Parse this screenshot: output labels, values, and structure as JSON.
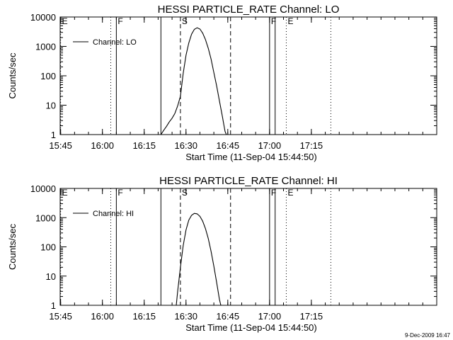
{
  "chart_data": [
    {
      "type": "line",
      "title": "HESSI PARTICLE_RATE Channel: LO",
      "xlabel": "Start Time (11-Sep-04 15:44:50)",
      "ylabel": "Counts/sec",
      "x_tick_labels": [
        "15:45",
        "16:00",
        "16:15",
        "16:30",
        "16:45",
        "17:00",
        "17:15"
      ],
      "y_tick_labels": [
        "1",
        "10",
        "100",
        "1000",
        "10000"
      ],
      "y_scale": "log",
      "ylim": [
        1,
        10000
      ],
      "xlim": [
        "15:44:50",
        "18:00"
      ],
      "legend": {
        "label": "Channel: LO",
        "placement": "top-left"
      },
      "grid": false,
      "markers": [
        {
          "label": "E",
          "time": "15:45",
          "style": "dotted"
        },
        {
          "label": "",
          "time": "16:03",
          "style": "dotted"
        },
        {
          "label": "F",
          "time": "16:05",
          "style": "solid"
        },
        {
          "label": "",
          "time": "16:21",
          "style": "solid"
        },
        {
          "label": "S",
          "time": "16:28",
          "style": "dashed"
        },
        {
          "label": "",
          "time": "16:46",
          "style": "dashed"
        },
        {
          "label": "F",
          "time": "17:00",
          "style": "solid"
        },
        {
          "label": "",
          "time": "17:02",
          "style": "solid"
        },
        {
          "label": "E",
          "time": "17:06",
          "style": "dotted"
        },
        {
          "label": "",
          "time": "17:22",
          "style": "dotted"
        }
      ],
      "series": [
        {
          "name": "Channel: LO",
          "points": [
            [
              "16:21",
              1
            ],
            [
              "16:22",
              1.4
            ],
            [
              "16:23",
              1.9
            ],
            [
              "16:24",
              2.7
            ],
            [
              "16:25",
              3.6
            ],
            [
              "16:26",
              5.2
            ],
            [
              "16:27",
              9.5
            ],
            [
              "16:28",
              20
            ],
            [
              "16:29",
              120
            ],
            [
              "16:30",
              500
            ],
            [
              "16:31",
              1300
            ],
            [
              "16:32",
              2600
            ],
            [
              "16:33",
              3800
            ],
            [
              "16:34",
              4300
            ],
            [
              "16:35",
              3900
            ],
            [
              "16:36",
              2800
            ],
            [
              "16:37",
              1700
            ],
            [
              "16:38",
              850
            ],
            [
              "16:39",
              370
            ],
            [
              "16:40",
              130
            ],
            [
              "16:41",
              45
            ],
            [
              "16:42",
              14
            ],
            [
              "16:43",
              4.5
            ],
            [
              "16:44",
              1.3
            ],
            [
              "16:44:30",
              1
            ]
          ]
        }
      ]
    },
    {
      "type": "line",
      "title": "HESSI PARTICLE_RATE Channel: HI",
      "xlabel": "Start Time (11-Sep-04 15:44:50)",
      "ylabel": "Counts/sec",
      "x_tick_labels": [
        "15:45",
        "16:00",
        "16:15",
        "16:30",
        "16:45",
        "17:00",
        "17:15"
      ],
      "y_tick_labels": [
        "1",
        "10",
        "100",
        "1000",
        "10000"
      ],
      "y_scale": "log",
      "ylim": [
        1,
        10000
      ],
      "xlim": [
        "15:44:50",
        "18:00"
      ],
      "legend": {
        "label": "Channel: HI",
        "placement": "top-left"
      },
      "grid": false,
      "markers": [
        {
          "label": "E",
          "time": "15:45",
          "style": "dotted"
        },
        {
          "label": "",
          "time": "16:03",
          "style": "dotted"
        },
        {
          "label": "F",
          "time": "16:05",
          "style": "solid"
        },
        {
          "label": "",
          "time": "16:21",
          "style": "solid"
        },
        {
          "label": "S",
          "time": "16:28",
          "style": "dashed"
        },
        {
          "label": "",
          "time": "16:46",
          "style": "dashed"
        },
        {
          "label": "F",
          "time": "17:00",
          "style": "solid"
        },
        {
          "label": "",
          "time": "17:02",
          "style": "solid"
        },
        {
          "label": "E",
          "time": "17:06",
          "style": "dotted"
        },
        {
          "label": "",
          "time": "17:22",
          "style": "dotted"
        }
      ],
      "series": [
        {
          "name": "Channel: HI",
          "points": [
            [
              "16:26:30",
              1
            ],
            [
              "16:27",
              3
            ],
            [
              "16:28",
              20
            ],
            [
              "16:29",
              110
            ],
            [
              "16:30",
              380
            ],
            [
              "16:31",
              820
            ],
            [
              "16:32",
              1200
            ],
            [
              "16:33",
              1400
            ],
            [
              "16:34",
              1350
            ],
            [
              "16:35",
              1100
            ],
            [
              "16:36",
              750
            ],
            [
              "16:37",
              420
            ],
            [
              "16:38",
              190
            ],
            [
              "16:39",
              70
            ],
            [
              "16:40",
              22
            ],
            [
              "16:41",
              6
            ],
            [
              "16:42",
              1.6
            ],
            [
              "16:42:30",
              1
            ]
          ]
        }
      ]
    }
  ],
  "footer": {
    "timestamp": "9-Dec-2009 16:47"
  }
}
